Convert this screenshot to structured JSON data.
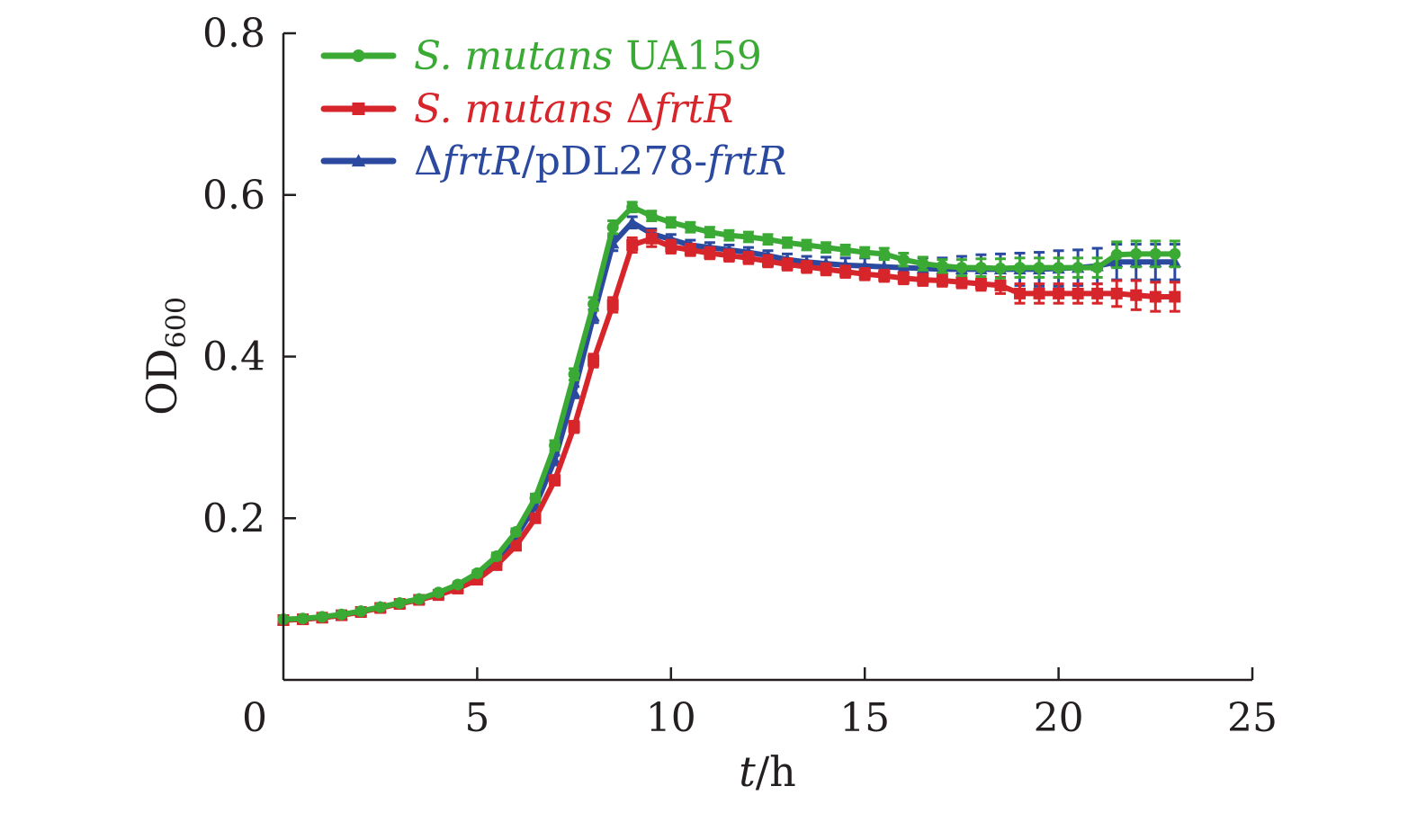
{
  "chart_data": {
    "type": "line",
    "xlabel": {
      "italic": "t",
      "rest": "/h"
    },
    "ylabel": {
      "main": "OD",
      "sub": "600"
    },
    "xlim": [
      0,
      25
    ],
    "ylim": [
      0,
      0.8
    ],
    "xticks": [
      "0",
      "5",
      "10",
      "15",
      "20",
      "25"
    ],
    "yticks": [
      "0.2",
      "0.4",
      "0.6",
      "0.8"
    ],
    "ytick_values": [
      0.2,
      0.4,
      0.6,
      0.8
    ],
    "xtick_values": [
      0,
      5,
      10,
      15,
      20,
      25
    ],
    "grid": false,
    "legend_position": "top-left",
    "x": [
      0,
      0.5,
      1,
      1.5,
      2,
      2.5,
      3,
      3.5,
      4,
      4.5,
      5,
      5.5,
      6,
      6.5,
      7,
      7.5,
      8,
      8.5,
      9,
      9.5,
      10,
      10.5,
      11,
      11.5,
      12,
      12.5,
      13,
      13.5,
      14,
      14.5,
      15,
      15.5,
      16,
      16.5,
      17,
      17.5,
      18,
      18.5,
      19,
      19.5,
      20,
      20.5,
      21,
      21.5,
      22,
      22.5,
      23
    ],
    "series": [
      {
        "legend": [
          {
            "text": "S. mutans",
            "italic": true
          },
          {
            "text": " UA159",
            "italic": false
          }
        ],
        "color": "#3aaa35",
        "marker": "circle",
        "values": [
          0.075,
          0.076,
          0.078,
          0.081,
          0.085,
          0.09,
          0.095,
          0.1,
          0.108,
          0.118,
          0.132,
          0.153,
          0.183,
          0.225,
          0.29,
          0.378,
          0.465,
          0.56,
          0.585,
          0.574,
          0.566,
          0.56,
          0.554,
          0.55,
          0.548,
          0.545,
          0.541,
          0.538,
          0.535,
          0.532,
          0.529,
          0.527,
          0.52,
          0.515,
          0.512,
          0.51,
          0.51,
          0.509,
          0.51,
          0.51,
          0.51,
          0.51,
          0.51,
          0.526,
          0.527,
          0.527,
          0.527
        ],
        "errors": [
          0.002,
          0.002,
          0.002,
          0.002,
          0.002,
          0.002,
          0.002,
          0.002,
          0.003,
          0.003,
          0.003,
          0.004,
          0.004,
          0.005,
          0.006,
          0.007,
          0.008,
          0.008,
          0.006,
          0.006,
          0.006,
          0.006,
          0.006,
          0.006,
          0.006,
          0.006,
          0.006,
          0.006,
          0.006,
          0.006,
          0.006,
          0.007,
          0.008,
          0.008,
          0.008,
          0.01,
          0.011,
          0.012,
          0.012,
          0.012,
          0.012,
          0.012,
          0.012,
          0.016,
          0.016,
          0.016,
          0.016
        ]
      },
      {
        "legend": [
          {
            "text": "S. mutans",
            "italic": true
          },
          {
            "text": " Δ",
            "italic": false
          },
          {
            "text": "frtR",
            "italic": true
          }
        ],
        "color": "#d7262b",
        "marker": "square",
        "values": [
          0.074,
          0.075,
          0.077,
          0.08,
          0.084,
          0.089,
          0.094,
          0.099,
          0.105,
          0.113,
          0.124,
          0.142,
          0.166,
          0.2,
          0.247,
          0.313,
          0.395,
          0.464,
          0.538,
          0.546,
          0.536,
          0.532,
          0.528,
          0.525,
          0.522,
          0.518,
          0.514,
          0.511,
          0.508,
          0.505,
          0.502,
          0.5,
          0.497,
          0.495,
          0.494,
          0.492,
          0.49,
          0.488,
          0.478,
          0.478,
          0.478,
          0.478,
          0.478,
          0.478,
          0.476,
          0.474,
          0.474
        ],
        "errors": [
          0.002,
          0.002,
          0.002,
          0.002,
          0.002,
          0.002,
          0.002,
          0.002,
          0.003,
          0.003,
          0.003,
          0.004,
          0.004,
          0.005,
          0.006,
          0.007,
          0.008,
          0.009,
          0.009,
          0.01,
          0.008,
          0.007,
          0.007,
          0.007,
          0.007,
          0.007,
          0.007,
          0.007,
          0.007,
          0.007,
          0.007,
          0.007,
          0.007,
          0.007,
          0.007,
          0.007,
          0.008,
          0.01,
          0.012,
          0.012,
          0.012,
          0.012,
          0.012,
          0.016,
          0.018,
          0.018,
          0.018
        ]
      },
      {
        "legend": [
          {
            "text": "Δ",
            "italic": false
          },
          {
            "text": "frtR",
            "italic": true
          },
          {
            "text": "/pDL278-",
            "italic": false
          },
          {
            "text": "frtR",
            "italic": true
          }
        ],
        "color": "#2b4a9f",
        "marker": "triangle",
        "values": [
          0.074,
          0.075,
          0.077,
          0.08,
          0.085,
          0.09,
          0.095,
          0.1,
          0.107,
          0.116,
          0.129,
          0.149,
          0.177,
          0.215,
          0.272,
          0.356,
          0.45,
          0.54,
          0.566,
          0.552,
          0.545,
          0.538,
          0.535,
          0.532,
          0.529,
          0.525,
          0.52,
          0.517,
          0.515,
          0.513,
          0.512,
          0.511,
          0.51,
          0.509,
          0.508,
          0.508,
          0.508,
          0.508,
          0.508,
          0.508,
          0.509,
          0.51,
          0.512,
          0.517,
          0.517,
          0.517,
          0.517
        ],
        "errors": [
          0.002,
          0.002,
          0.002,
          0.002,
          0.002,
          0.002,
          0.002,
          0.002,
          0.003,
          0.003,
          0.003,
          0.004,
          0.004,
          0.005,
          0.006,
          0.007,
          0.008,
          0.009,
          0.007,
          0.006,
          0.006,
          0.006,
          0.006,
          0.006,
          0.006,
          0.006,
          0.007,
          0.007,
          0.008,
          0.009,
          0.01,
          0.011,
          0.012,
          0.013,
          0.014,
          0.016,
          0.018,
          0.019,
          0.02,
          0.021,
          0.022,
          0.022,
          0.022,
          0.022,
          0.022,
          0.022,
          0.022
        ]
      }
    ]
  }
}
